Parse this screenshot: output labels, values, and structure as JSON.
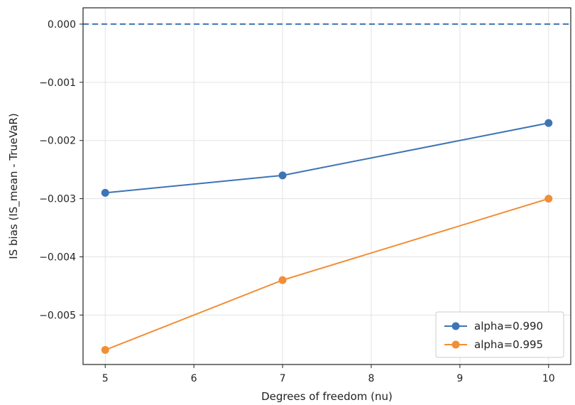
{
  "chart_data": {
    "type": "line",
    "title": "",
    "xlabel": "Degrees of freedom (nu)",
    "ylabel": "IS bias (IS_mean - TrueVaR)",
    "xlim": [
      4.75,
      10.25
    ],
    "ylim": [
      -0.00585,
      0.00028
    ],
    "xticks": [
      5,
      6,
      7,
      8,
      9,
      10
    ],
    "xtick_labels": [
      "5",
      "6",
      "7",
      "8",
      "9",
      "10"
    ],
    "yticks": [
      0,
      -0.001,
      -0.002,
      -0.003,
      -0.004,
      -0.005
    ],
    "ytick_labels": [
      "0.000",
      "−0.001",
      "−0.002",
      "−0.003",
      "−0.004",
      "−0.005"
    ],
    "grid": true,
    "legend_position": "lower-right",
    "reference_line": {
      "y": 0,
      "style": "dashed",
      "color": "#3d74b6"
    },
    "x": [
      5,
      7,
      10
    ],
    "series": [
      {
        "name": "alpha=0.990",
        "color": "#3d74b6",
        "values": [
          -0.0029,
          -0.0026,
          -0.0017
        ]
      },
      {
        "name": "alpha=0.995",
        "color": "#f28e35",
        "values": [
          -0.0056,
          -0.0044,
          -0.003
        ]
      }
    ]
  }
}
